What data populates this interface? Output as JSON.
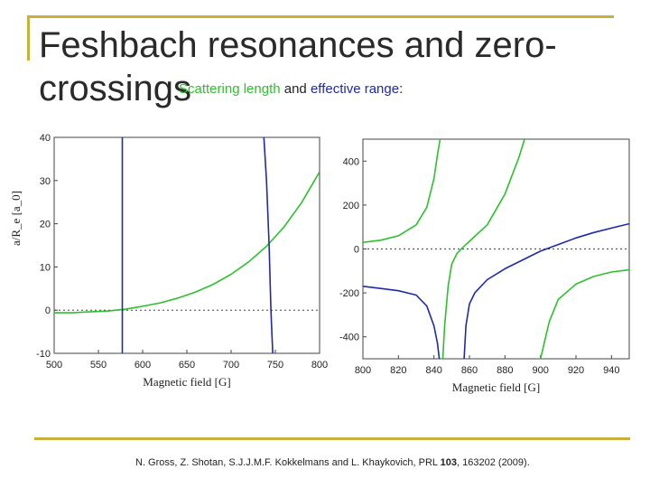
{
  "slide": {
    "title": "Feshbach resonances and zero-crossings",
    "subtitle_part1": "Scattering length",
    "subtitle_and": " and ",
    "subtitle_part2": "effective range",
    "subtitle_colon": ":",
    "citation_pre": "N. Gross, Z. Shotan, S.J.J.M.F. Kokkelmans and L. Khaykovich, PRL ",
    "citation_vol": "103",
    "citation_post": ", 163202 (2009).",
    "accent_color": "#c8b03a",
    "green_color": "#2dc02d",
    "blue_color": "#1f2aa8"
  },
  "chart_data": [
    {
      "type": "line",
      "xlabel": "Magnetic field [G]",
      "ylabel": "a/R_e [a_0]",
      "xlim": [
        500,
        800
      ],
      "ylim": [
        -10,
        40
      ],
      "xticks": [
        500,
        550,
        600,
        650,
        700,
        750,
        800
      ],
      "yticks": [
        -10,
        0,
        10,
        20,
        30,
        40
      ],
      "reference_line": 0,
      "series": [
        {
          "color": "green",
          "x": [
            500,
            520,
            540,
            560,
            580,
            600,
            620,
            640,
            660,
            680,
            700,
            720,
            740,
            760,
            780,
            800
          ],
          "y": [
            -0.6,
            -0.6,
            -0.4,
            -0.2,
            0.2,
            0.9,
            1.7,
            2.8,
            4.2,
            6.0,
            8.3,
            11.2,
            14.8,
            19.3,
            25.0,
            32.0
          ]
        },
        {
          "color": "blue",
          "segments": [
            {
              "x": [
                577,
                577
              ],
              "y": [
                40,
                -10
              ]
            },
            {
              "x": [
                737,
                740,
                743,
                745,
                747
              ],
              "y": [
                40,
                30,
                15,
                0,
                -10
              ]
            }
          ]
        }
      ]
    },
    {
      "type": "line",
      "xlabel": "Magnetic field [G]",
      "ylabel": "",
      "xlim": [
        800,
        950
      ],
      "ylim": [
        -500,
        500
      ],
      "xticks": [
        800,
        820,
        840,
        860,
        880,
        900,
        920,
        940
      ],
      "yticks": [
        -400,
        -200,
        0,
        200,
        400
      ],
      "reference_line": 0,
      "series": [
        {
          "color": "green",
          "segments": [
            {
              "x": [
                800,
                810,
                820,
                830,
                836,
                840,
                842,
                843.5
              ],
              "y": [
                30,
                40,
                60,
                110,
                190,
                320,
                430,
                500
              ]
            },
            {
              "x": [
                845,
                846,
                848,
                850,
                853,
                856,
                860,
                870,
                880,
                888,
                891
              ],
              "y": [
                -500,
                -350,
                -170,
                -70,
                -20,
                5,
                35,
                110,
                250,
                420,
                500
              ]
            },
            {
              "x": [
                900,
                905,
                910,
                920,
                930,
                940,
                950
              ],
              "y": [
                -500,
                -330,
                -230,
                -160,
                -125,
                -105,
                -95
              ]
            }
          ]
        },
        {
          "color": "blue",
          "segments": [
            {
              "x": [
                800,
                810,
                820,
                830,
                836,
                840,
                842,
                843
              ],
              "y": [
                -170,
                -180,
                -190,
                -210,
                -260,
                -350,
                -430,
                -500
              ]
            },
            {
              "x": [
                857,
                858,
                860,
                863,
                870,
                880,
                890,
                900,
                910,
                920,
                930,
                940,
                950
              ],
              "y": [
                -500,
                -350,
                -250,
                -200,
                -140,
                -90,
                -50,
                -10,
                20,
                50,
                75,
                95,
                115
              ]
            }
          ]
        }
      ]
    }
  ]
}
